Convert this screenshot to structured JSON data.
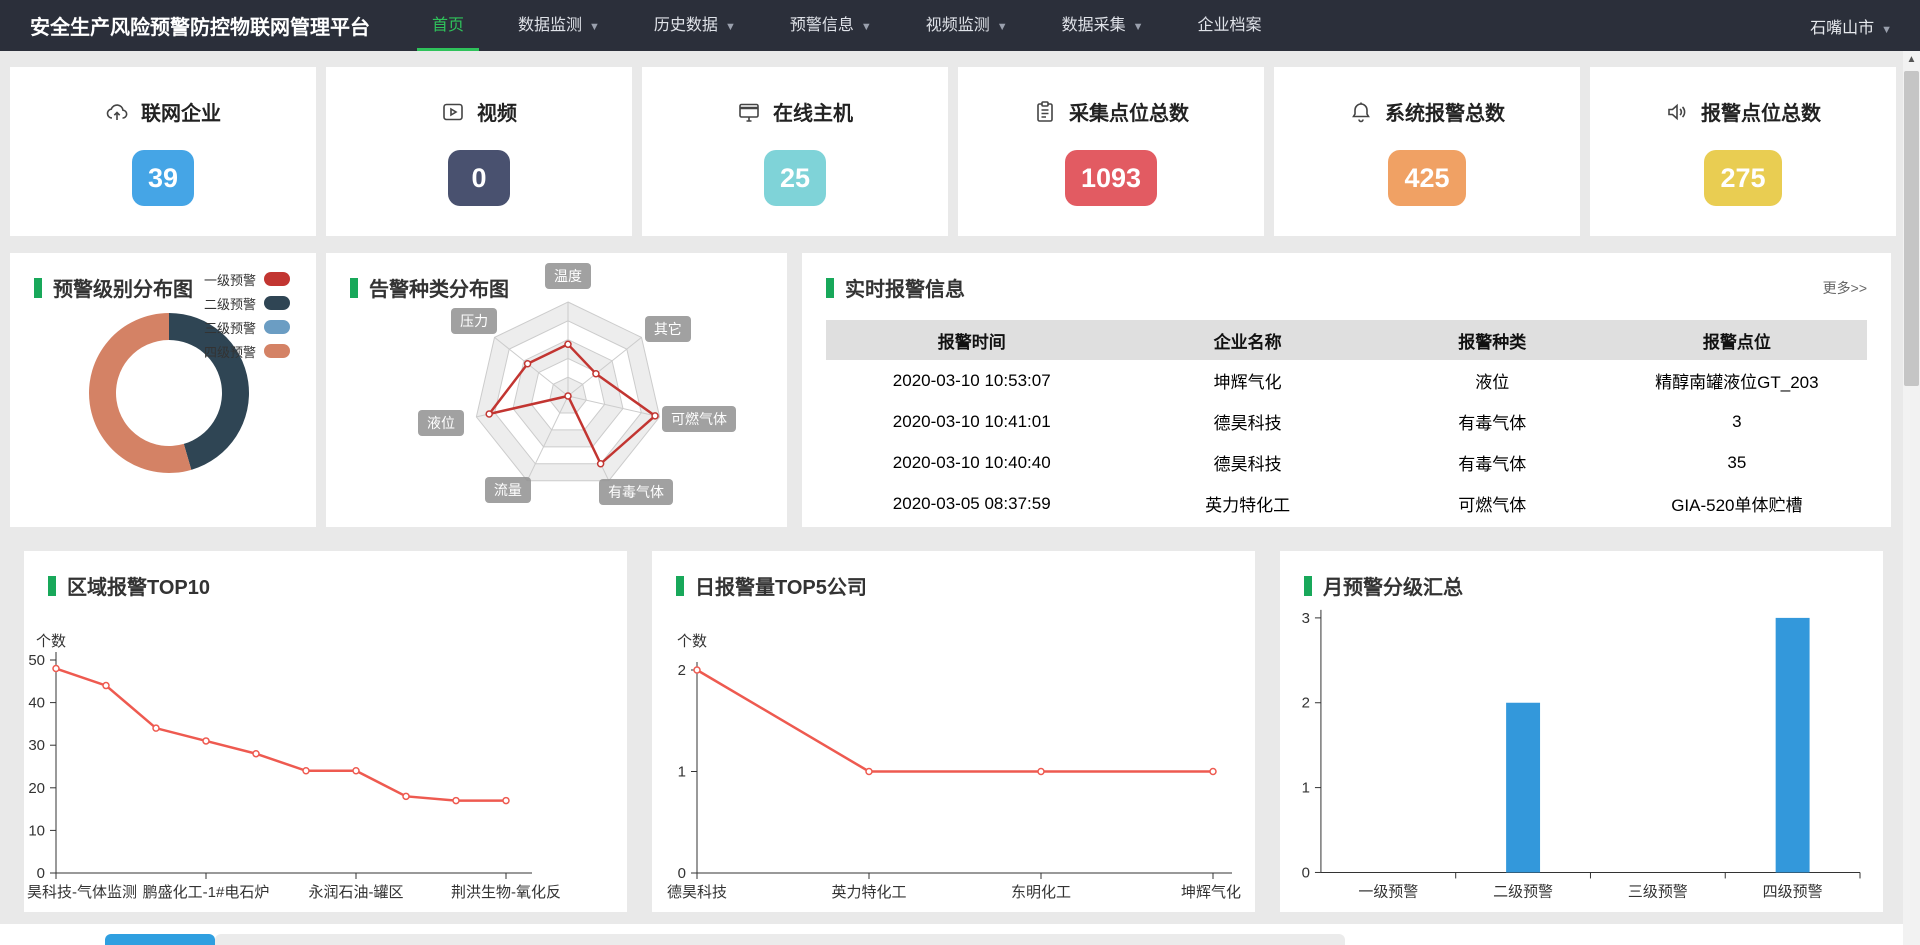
{
  "nav": {
    "title": "安全生产风险预警防控物联网管理平台",
    "items": [
      {
        "label": "首页",
        "active": true,
        "caret": false
      },
      {
        "label": "数据监测",
        "active": false,
        "caret": true
      },
      {
        "label": "历史数据",
        "active": false,
        "caret": true
      },
      {
        "label": "预警信息",
        "active": false,
        "caret": true
      },
      {
        "label": "视频监测",
        "active": false,
        "caret": true
      },
      {
        "label": "数据采集",
        "active": false,
        "caret": true
      },
      {
        "label": "企业档案",
        "active": false,
        "caret": false
      }
    ],
    "region": "石嘴山市",
    "accent_color": "#2fc25b"
  },
  "stats": [
    {
      "label": "联网企业",
      "value": "39",
      "color": "#45a5e6",
      "icon": "cloud-upload-icon"
    },
    {
      "label": "视频",
      "value": "0",
      "color": "#49516f",
      "icon": "video-icon"
    },
    {
      "label": "在线主机",
      "value": "25",
      "color": "#7fd3d8",
      "icon": "monitor-icon"
    },
    {
      "label": "采集点位总数",
      "value": "1093",
      "color": "#e25b62",
      "icon": "clipboard-icon"
    },
    {
      "label": "系统报警总数",
      "value": "425",
      "color": "#f0a164",
      "icon": "bell-icon"
    },
    {
      "label": "报警点位总数",
      "value": "275",
      "color": "#e9cd52",
      "icon": "speaker-icon"
    }
  ],
  "table": {
    "title": "实时报警信息",
    "more_label": "更多>>",
    "columns": [
      "报警时间",
      "企业名称",
      "报警种类",
      "报警点位"
    ],
    "rows": [
      [
        "2020-03-10 10:53:07",
        "坤辉气化",
        "液位",
        "精醇南罐液位GT_203"
      ],
      [
        "2020-03-10 10:41:01",
        "德昊科技",
        "有毒气体",
        "3"
      ],
      [
        "2020-03-10 10:40:40",
        "德昊科技",
        "有毒气体",
        "35"
      ],
      [
        "2020-03-05 08:37:59",
        "英力特化工",
        "可燃气体",
        "GIA-520单体贮槽"
      ]
    ]
  },
  "chart_data": [
    {
      "type": "pie",
      "title": "预警级别分布图",
      "legend": [
        "一级预警",
        "二级预警",
        "三级预警",
        "四级预警"
      ],
      "colors": [
        "#c23531",
        "#2f4554",
        "#6b9dc3",
        "#d48265"
      ],
      "values": [
        0,
        45.5,
        0,
        54.5
      ],
      "legend_position": "right",
      "shape": "donut"
    },
    {
      "type": "radar",
      "title": "告警种类分布图",
      "indicators": [
        "温度",
        "其它",
        "可燃气体",
        "有毒气体",
        "流量",
        "液位",
        "压力"
      ],
      "values": [
        55,
        38,
        95,
        80,
        0,
        86,
        55
      ],
      "max": 100,
      "levels": 5,
      "line_color": "#c23531"
    },
    {
      "type": "line",
      "title": "区域报警TOP10",
      "ylabel": "个数",
      "categories": [
        "昊科技-气体监测",
        "",
        "",
        "鹏盛化工-1#电石炉",
        "",
        "",
        "永润石油-罐区",
        "",
        "",
        "荆洪生物-氧化反"
      ],
      "values": [
        48,
        44,
        34,
        31,
        28,
        24,
        24,
        18,
        17,
        17
      ],
      "ylim": [
        0,
        50
      ],
      "ytick_step": 10,
      "line_color": "#ee5a50"
    },
    {
      "type": "line",
      "title": "日报警量TOP5公司",
      "ylabel": "个数",
      "categories": [
        "德昊科技",
        "英力特化工",
        "东明化工",
        "坤辉气化"
      ],
      "values": [
        2,
        1,
        1,
        1
      ],
      "ylim": [
        0,
        2
      ],
      "ytick_step": 1,
      "line_color": "#ee5a50"
    },
    {
      "type": "bar",
      "title": "月预警分级汇总",
      "categories": [
        "一级预警",
        "二级预警",
        "三级预警",
        "四级预警"
      ],
      "values": [
        0,
        2,
        0,
        3
      ],
      "ylim": [
        0,
        3
      ],
      "ytick_step": 1,
      "bar_color": "#3398db"
    }
  ]
}
